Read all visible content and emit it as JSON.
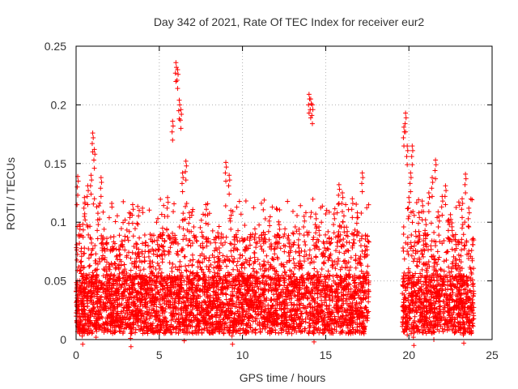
{
  "chart_data": {
    "type": "scatter",
    "title": "Day 342 of 2021, Rate Of TEC Index for receiver eur2",
    "xlabel": "GPS time / hours",
    "ylabel": "ROTI / TECUs",
    "xlim": [
      0,
      25
    ],
    "ylim": [
      0,
      0.25
    ],
    "x_ticks": [
      "0",
      "5",
      "10",
      "15",
      "20",
      "25"
    ],
    "y_ticks": [
      "0",
      "0.05",
      "0.1",
      "0.15",
      "0.2",
      "0.25"
    ],
    "grid": true,
    "legend": "none",
    "marker": "plus",
    "color": "#ff0000",
    "series": [
      {
        "x": [
          0.1,
          0.2,
          0.3,
          0.5,
          0.7,
          0.9,
          1.0,
          1.1,
          1.3,
          1.5,
          1.6,
          1.8,
          2.0,
          2.3,
          2.6,
          2.9,
          3.2,
          3.4,
          3.6,
          3.8,
          4.0,
          4.3,
          4.6,
          4.9,
          5.2,
          5.5,
          5.8,
          6.0,
          6.1,
          6.2,
          6.3,
          6.4,
          6.6,
          6.8,
          7.0,
          7.3,
          7.6,
          7.8,
          8.0,
          8.3,
          8.6,
          9.0,
          9.2,
          9.3,
          9.5,
          9.8,
          10.1,
          10.4,
          10.7,
          11.0,
          11.3,
          11.6,
          11.9,
          12.2,
          12.5,
          12.8,
          13.1,
          13.4,
          13.7,
          14.0,
          14.1,
          14.2,
          14.4,
          14.6,
          14.9,
          15.2,
          15.5,
          15.8,
          16.0,
          16.3,
          16.6,
          16.9,
          17.2,
          17.5,
          19.7,
          19.8,
          19.9,
          20.0,
          20.1,
          20.2,
          20.4,
          20.6,
          20.8,
          21.0,
          21.2,
          21.4,
          21.6,
          21.8,
          22.0,
          22.2,
          22.4,
          22.6,
          22.8,
          23.0,
          23.2,
          23.4,
          23.6,
          23.8,
          0.4,
          1.2,
          3.3,
          6.5,
          9.4,
          14.3,
          19.9,
          20.3,
          21.5,
          23.3
        ],
        "y": [
          0.139,
          0.098,
          0.075,
          0.121,
          0.131,
          0.14,
          0.176,
          0.162,
          0.102,
          0.138,
          0.085,
          0.062,
          0.048,
          0.055,
          0.072,
          0.064,
          0.108,
          0.115,
          0.082,
          0.071,
          0.053,
          0.047,
          0.066,
          0.081,
          0.095,
          0.121,
          0.186,
          0.236,
          0.23,
          0.204,
          0.196,
          0.142,
          0.152,
          0.108,
          0.072,
          0.066,
          0.082,
          0.115,
          0.062,
          0.07,
          0.078,
          0.151,
          0.14,
          0.11,
          0.085,
          0.058,
          0.065,
          0.05,
          0.074,
          0.052,
          0.063,
          0.101,
          0.077,
          0.098,
          0.062,
          0.083,
          0.065,
          0.094,
          0.105,
          0.209,
          0.205,
          0.2,
          0.107,
          0.093,
          0.082,
          0.086,
          0.107,
          0.132,
          0.125,
          0.092,
          0.12,
          0.108,
          0.142,
          0.088,
          0.181,
          0.193,
          0.165,
          0.121,
          0.142,
          0.165,
          0.092,
          0.108,
          0.118,
          0.102,
          0.125,
          0.138,
          0.153,
          0.105,
          0.122,
          0.131,
          0.102,
          0.093,
          0.085,
          0.072,
          0.12,
          0.141,
          0.112,
          0.085,
          0.012,
          0.018,
          0.01,
          0.015,
          0.012,
          0.014,
          0.02,
          0.011,
          0.016,
          0.013
        ],
        "density": {
          "x_start": [
            0.0,
            19.6
          ],
          "x_end": [
            17.6,
            23.9
          ],
          "base_min": 0.005,
          "base_max": 0.055
        }
      }
    ]
  }
}
